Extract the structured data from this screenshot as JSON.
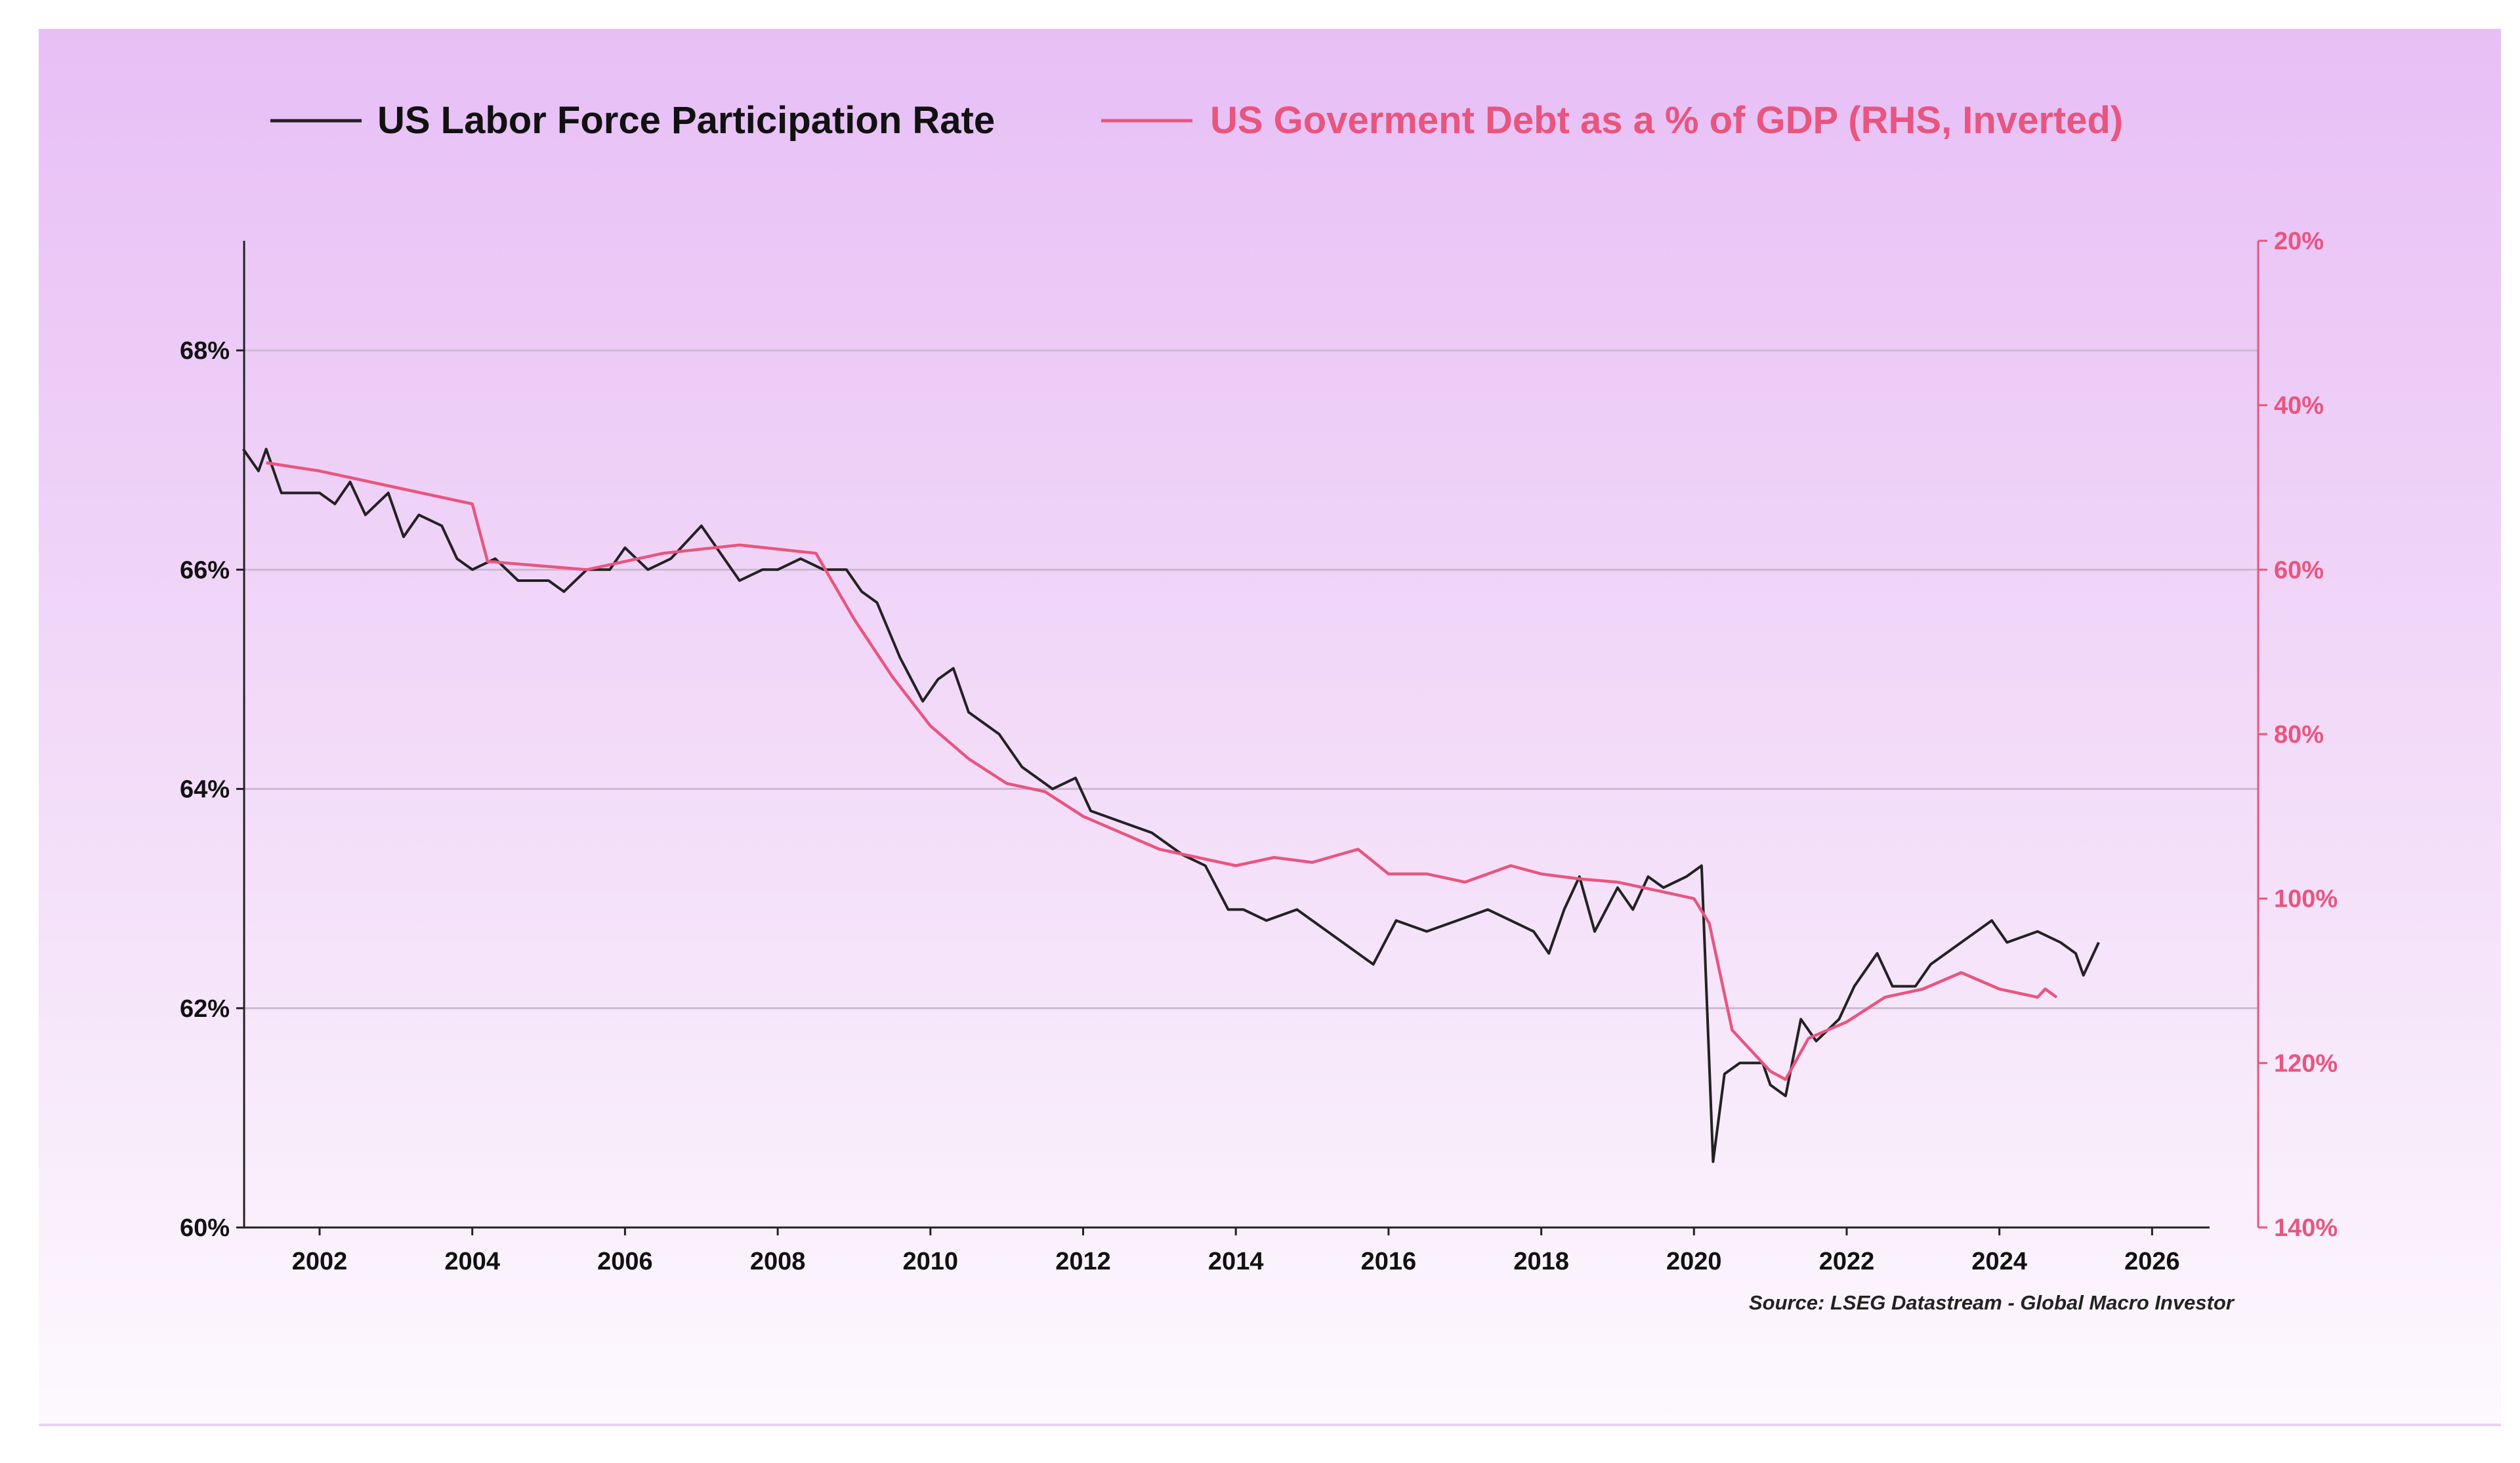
{
  "legend": {
    "series1": "US Labor Force Participation Rate",
    "series2": "US Goverment Debt as a % of GDP (RHS, Inverted)"
  },
  "source": "Source: LSEG Datastream - Global Macro Investor",
  "colors": {
    "series1": "#222222",
    "series2": "#e8557f",
    "background_top": "#e7bff6",
    "background_bottom": "#fdf9fe"
  },
  "chart_data": {
    "type": "line",
    "title": "",
    "grid": "horizontal",
    "legend_position": "top",
    "xlim": [
      2001,
      2026.75
    ],
    "x_ticks": [
      "2002",
      "2004",
      "2006",
      "2008",
      "2010",
      "2012",
      "2014",
      "2016",
      "2018",
      "2020",
      "2022",
      "2024",
      "2026"
    ],
    "y_left": {
      "ylim": [
        60,
        69
      ],
      "ticks": [
        "60%",
        "62%",
        "64%",
        "66%",
        "68%"
      ],
      "tick_values": [
        60,
        62,
        64,
        66,
        68
      ]
    },
    "y_right": {
      "ylim": [
        20,
        140
      ],
      "inverted": true,
      "ticks": [
        "20%",
        "40%",
        "60%",
        "80%",
        "100%",
        "120%",
        "140%"
      ],
      "tick_values": [
        20,
        40,
        60,
        80,
        100,
        120,
        140
      ]
    },
    "series": [
      {
        "name": "US Labor Force Participation Rate",
        "axis": "left",
        "color": "#222222",
        "x": [
          2001.0,
          2001.2,
          2001.3,
          2001.5,
          2002.0,
          2002.2,
          2002.4,
          2002.6,
          2002.9,
          2003.1,
          2003.3,
          2003.6,
          2003.8,
          2004.0,
          2004.3,
          2004.6,
          2005.0,
          2005.2,
          2005.5,
          2005.8,
          2006.0,
          2006.3,
          2006.6,
          2007.0,
          2007.2,
          2007.5,
          2007.8,
          2008.0,
          2008.3,
          2008.6,
          2008.9,
          2009.1,
          2009.3,
          2009.6,
          2009.9,
          2010.1,
          2010.3,
          2010.5,
          2010.9,
          2011.2,
          2011.6,
          2011.9,
          2012.1,
          2012.5,
          2012.9,
          2013.3,
          2013.6,
          2013.9,
          2014.1,
          2014.4,
          2014.8,
          2015.2,
          2015.6,
          2015.8,
          2016.1,
          2016.5,
          2016.9,
          2017.3,
          2017.6,
          2017.9,
          2018.1,
          2018.3,
          2018.5,
          2018.7,
          2019.0,
          2019.2,
          2019.4,
          2019.6,
          2019.9,
          2020.1,
          2020.25,
          2020.4,
          2020.6,
          2020.9,
          2021.0,
          2021.2,
          2021.4,
          2021.6,
          2021.9,
          2022.1,
          2022.4,
          2022.6,
          2022.9,
          2023.1,
          2023.5,
          2023.9,
          2024.1,
          2024.5,
          2024.8,
          2025.0,
          2025.1,
          2025.3
        ],
        "y": [
          67.1,
          66.9,
          67.1,
          66.7,
          66.7,
          66.6,
          66.8,
          66.5,
          66.7,
          66.3,
          66.5,
          66.4,
          66.1,
          66.0,
          66.1,
          65.9,
          65.9,
          65.8,
          66.0,
          66.0,
          66.2,
          66.0,
          66.1,
          66.4,
          66.2,
          65.9,
          66.0,
          66.0,
          66.1,
          66.0,
          66.0,
          65.8,
          65.7,
          65.2,
          64.8,
          65.0,
          65.1,
          64.7,
          64.5,
          64.2,
          64.0,
          64.1,
          63.8,
          63.7,
          63.6,
          63.4,
          63.3,
          62.9,
          62.9,
          62.8,
          62.9,
          62.7,
          62.5,
          62.4,
          62.8,
          62.7,
          62.8,
          62.9,
          62.8,
          62.7,
          62.5,
          62.9,
          63.2,
          62.7,
          63.1,
          62.9,
          63.2,
          63.1,
          63.2,
          63.3,
          60.6,
          61.4,
          61.5,
          61.5,
          61.3,
          61.2,
          61.9,
          61.7,
          61.9,
          62.2,
          62.5,
          62.2,
          62.2,
          62.4,
          62.6,
          62.8,
          62.6,
          62.7,
          62.6,
          62.5,
          62.3,
          62.6
        ]
      },
      {
        "name": "US Goverment Debt as a % of GDP (RHS, Inverted)",
        "axis": "right",
        "color": "#e8557f",
        "x": [
          2001.3,
          2002.0,
          2003.0,
          2004.0,
          2004.2,
          2005.5,
          2006.5,
          2007.5,
          2008.5,
          2009.0,
          2009.5,
          2010.0,
          2010.5,
          2011.0,
          2011.5,
          2012.0,
          2012.5,
          2013.0,
          2013.5,
          2014.0,
          2014.5,
          2015.0,
          2015.6,
          2016.0,
          2016.5,
          2017.0,
          2017.6,
          2018.0,
          2018.5,
          2019.0,
          2019.5,
          2020.0,
          2020.2,
          2020.5,
          2021.0,
          2021.2,
          2021.5,
          2022.0,
          2022.5,
          2023.0,
          2023.5,
          2024.0,
          2024.5,
          2024.6,
          2024.75
        ],
        "y": [
          47,
          48,
          50,
          52,
          59,
          60,
          58,
          57,
          58,
          66,
          73,
          79,
          83,
          86,
          87,
          90,
          92,
          94,
          95,
          96,
          95,
          95.6,
          94,
          97,
          97,
          98,
          96,
          97,
          97.6,
          98,
          99,
          100,
          103,
          116,
          121,
          122,
          117,
          115,
          112,
          111,
          109,
          111,
          112,
          111,
          112
        ]
      }
    ]
  }
}
